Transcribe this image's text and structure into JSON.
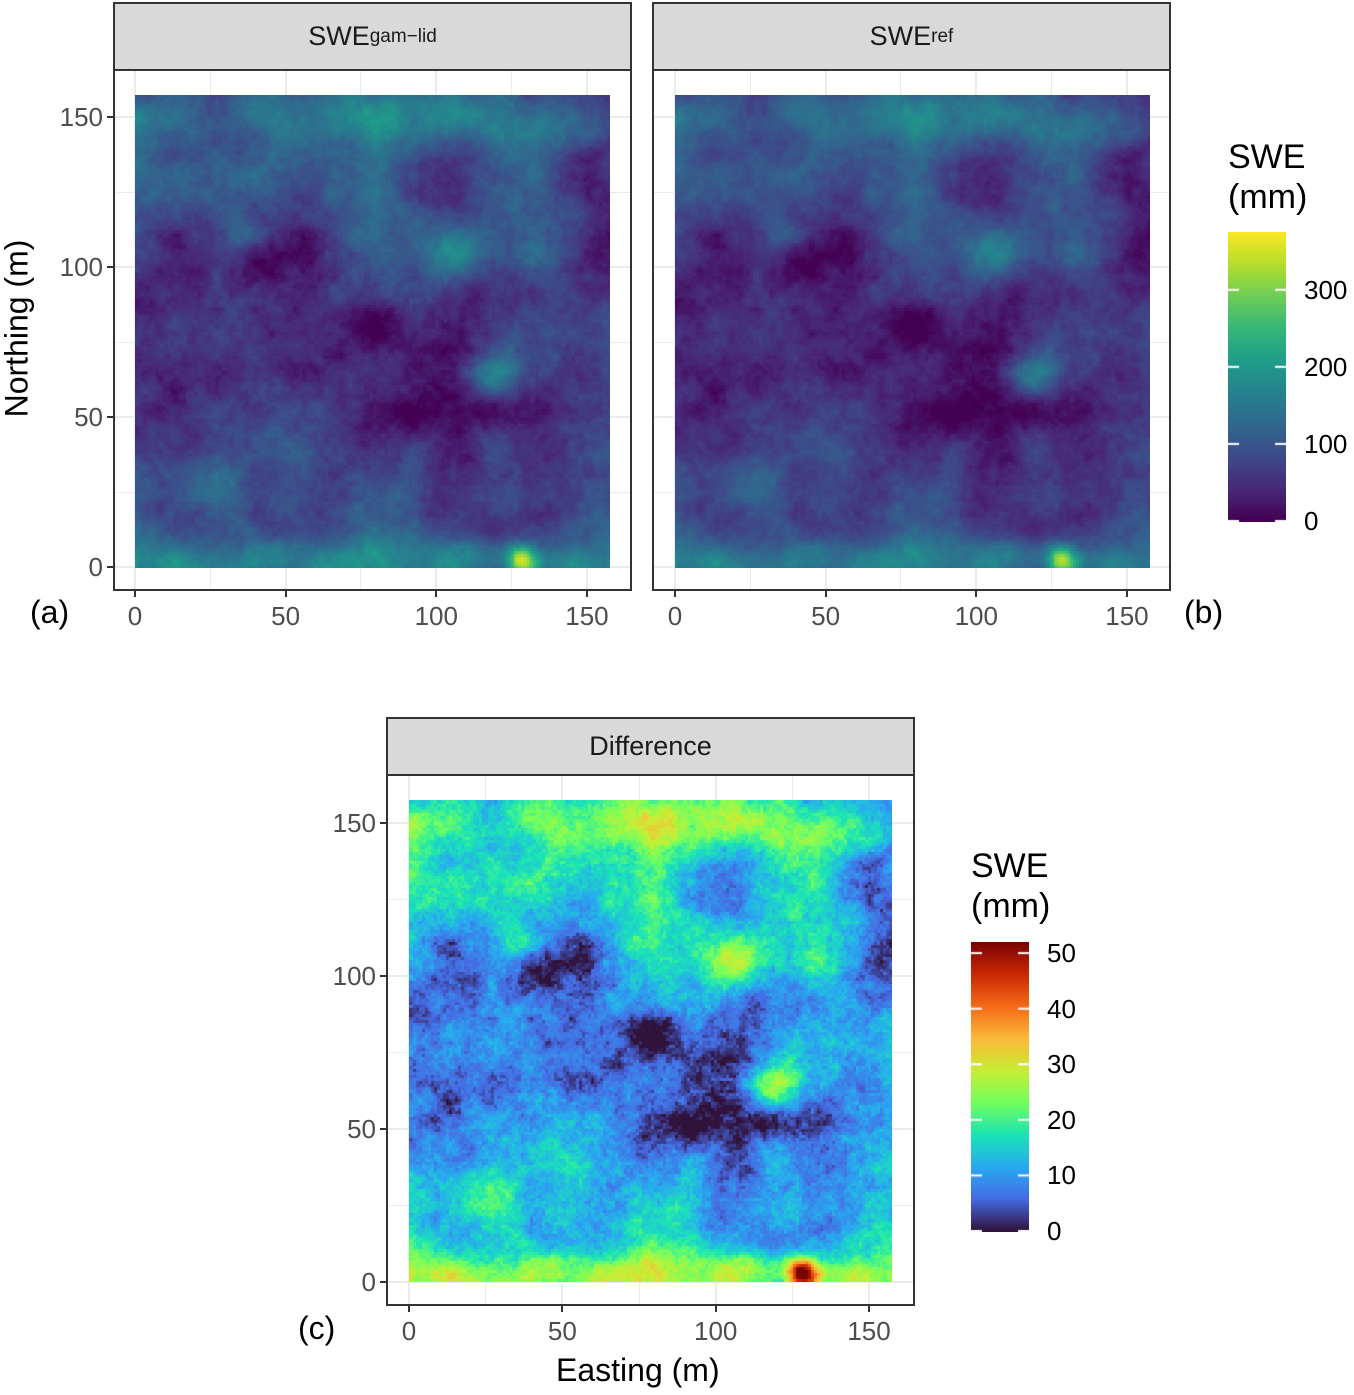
{
  "chart_data": [
    {
      "type": "heatmap",
      "panel_label": "(a)",
      "strip": {
        "main": "SWE",
        "sub": "gam−lid"
      },
      "xlabel": "Easting (m)",
      "ylabel": "Northing (m)",
      "xlim": [
        0,
        157.5
      ],
      "ylim": [
        0,
        157.5
      ],
      "xticks": [
        0,
        50,
        100,
        150
      ],
      "yticks": [
        0,
        50,
        100,
        150
      ],
      "colormap": "viridis",
      "value_range": [
        0,
        375
      ],
      "notable": "bright maximum near Easting 128, Northing 3"
    },
    {
      "type": "heatmap",
      "panel_label": "(b)",
      "strip": {
        "main": "SWE",
        "sub": "ref"
      },
      "xlim": [
        0,
        157.5
      ],
      "ylim": [
        0,
        157.5
      ],
      "xticks": [
        0,
        50,
        100,
        150
      ],
      "colormap": "viridis",
      "value_range": [
        0,
        375
      ]
    },
    {
      "type": "heatmap",
      "panel_label": "(c)",
      "strip": {
        "main": "Difference",
        "sub": ""
      },
      "xlabel": "Easting (m)",
      "ylabel": "",
      "xlim": [
        0,
        157.5
      ],
      "ylim": [
        0,
        157.5
      ],
      "xticks": [
        0,
        50,
        100,
        150
      ],
      "yticks": [
        0,
        50,
        100,
        150
      ],
      "colormap": "turbo",
      "value_range": [
        0,
        52
      ]
    }
  ],
  "legends": {
    "top": {
      "title_line1": "SWE",
      "title_line2": "(mm)",
      "ticks": [
        0,
        100,
        200,
        300
      ],
      "range": [
        0,
        375
      ]
    },
    "bottom": {
      "title_line1": "SWE",
      "title_line2": "(mm)",
      "ticks": [
        0,
        10,
        20,
        30,
        40,
        50
      ],
      "range": [
        0,
        52
      ]
    }
  },
  "labels": {
    "tick_text": [
      "0",
      "50",
      "100",
      "150"
    ],
    "legend_top_text": [
      "0",
      "100",
      "200",
      "300"
    ],
    "legend_bottom_text": [
      "0",
      "10",
      "20",
      "30",
      "40",
      "50"
    ]
  }
}
